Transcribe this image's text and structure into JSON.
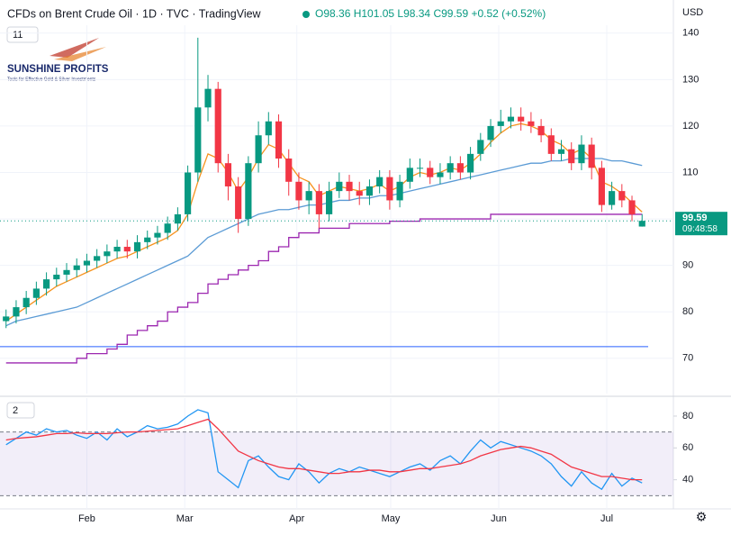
{
  "header": {
    "symbol": "CFDs on Brent Crude Oil · 1D · TVC · TradingView",
    "ohlc": "O98.36 H101.05 L98.34 C99.59 +0.52 (+0.52%)",
    "currency": "USD",
    "indicator_count": "11",
    "timer": "09:48:58"
  },
  "logo": {
    "name": "SUNSHINE PROFITS",
    "tagline": "Tools for Effective Gold & Silver Investments"
  },
  "chart_data": [
    {
      "type": "candlestick",
      "up_color": "#089981",
      "down_color": "#f23645",
      "open": [
        78,
        79,
        81,
        83,
        85,
        87,
        88,
        89,
        90,
        91,
        92,
        93,
        94,
        93,
        95,
        96,
        97,
        99,
        101,
        110,
        124,
        128,
        112,
        107,
        100,
        112,
        118,
        121,
        113,
        108,
        104,
        106,
        101,
        106,
        108,
        106,
        105,
        107,
        109,
        104,
        108,
        111,
        111,
        109,
        110,
        112,
        110,
        114,
        117,
        120,
        121,
        122,
        121,
        120,
        118,
        114,
        115,
        112,
        116,
        111,
        103,
        106,
        104,
        98.36
      ],
      "high": [
        80.5,
        82.5,
        84.5,
        86.5,
        88.5,
        89.5,
        90.5,
        91.5,
        92.5,
        93.5,
        94.5,
        95.5,
        95.5,
        96.5,
        97.5,
        98.5,
        100.5,
        102.5,
        111.5,
        139,
        131,
        129.5,
        114,
        109,
        113.5,
        121,
        123,
        122.5,
        115,
        110,
        108,
        107.5,
        108,
        110,
        109.5,
        108,
        108.5,
        110.5,
        110.5,
        109.5,
        113,
        113,
        112.5,
        112,
        113.5,
        113.5,
        115.5,
        118.5,
        121.5,
        123.5,
        124,
        124,
        123,
        121.5,
        119.5,
        117,
        116.5,
        118,
        117.5,
        112.5,
        108,
        107.5,
        105,
        101.05
      ],
      "low": [
        76.5,
        77.5,
        79.5,
        81.5,
        83.5,
        85.5,
        86.5,
        87.5,
        88.5,
        89.5,
        90.5,
        91.5,
        91.5,
        91.5,
        93.5,
        94.5,
        95.5,
        97.5,
        99.5,
        108,
        121,
        110,
        104,
        97,
        98.5,
        110,
        116,
        111,
        105,
        102,
        101,
        98,
        99.5,
        104.5,
        104,
        103,
        103,
        105.5,
        102,
        102.5,
        106.5,
        109,
        107.5,
        107.5,
        108.5,
        108.5,
        108.5,
        112.5,
        115.5,
        118.5,
        119.5,
        119,
        118.5,
        116.5,
        112.5,
        112.5,
        110.5,
        110.5,
        108.5,
        101.5,
        102,
        102.5,
        99.5,
        98.34
      ],
      "close": [
        79,
        81,
        83,
        85,
        87,
        88,
        89,
        90,
        91,
        92,
        93,
        94,
        93,
        95,
        96,
        97,
        99,
        101,
        110,
        124,
        128,
        112,
        107,
        100,
        112,
        118,
        121,
        113,
        108,
        104,
        106,
        101,
        106,
        108,
        106,
        105,
        107,
        109,
        104,
        108,
        111,
        111,
        109,
        110,
        112,
        110,
        114,
        117,
        120,
        121,
        122,
        121,
        120,
        118,
        114,
        115,
        112,
        116,
        111,
        103,
        106,
        104,
        101,
        99.59
      ],
      "series": [
        {
          "color": "#5b9bd5",
          "values": [
            77,
            78,
            78.5,
            79,
            79.5,
            80,
            80.5,
            81,
            82,
            83,
            84,
            85,
            86,
            87,
            88,
            89,
            90,
            91,
            92,
            94,
            96,
            97,
            98,
            99,
            100,
            101,
            101.5,
            102,
            102,
            102.5,
            103,
            103,
            103.5,
            104,
            104,
            104.5,
            104.5,
            105,
            105,
            105.5,
            106,
            106.5,
            107,
            107.5,
            108,
            108.5,
            109,
            109.5,
            110,
            110.5,
            111,
            111.5,
            112,
            112,
            112.5,
            112.5,
            113,
            113,
            113,
            113,
            112.5,
            112.5,
            112,
            111.5
          ]
        },
        {
          "color": "#f7931e",
          "values": [
            78,
            79.5,
            81,
            82.5,
            84,
            85.5,
            86.5,
            87.5,
            88.5,
            89.5,
            90.5,
            91.5,
            92,
            93,
            94,
            95,
            96,
            97.5,
            101,
            108,
            114,
            113,
            110,
            106,
            109,
            113,
            116,
            115,
            112,
            109,
            108,
            105,
            106,
            107,
            106.5,
            106,
            106.5,
            107.5,
            106,
            107,
            109,
            110,
            109.5,
            110,
            111,
            110.5,
            112,
            114,
            116.5,
            118.5,
            120,
            120.5,
            120,
            119,
            117,
            116,
            114,
            115,
            113,
            108,
            107,
            105.5,
            103.5,
            101.5
          ]
        },
        {
          "color": "#9c27b0",
          "step": true,
          "values": [
            69,
            69,
            69,
            69,
            69,
            69,
            69,
            70,
            71,
            71,
            72,
            73,
            75,
            76,
            77,
            78,
            80,
            81,
            82,
            84,
            86,
            87,
            88,
            89,
            90,
            91,
            93,
            94,
            96,
            97,
            97,
            98,
            98,
            98,
            99,
            99,
            99,
            99,
            99.5,
            99.5,
            99.5,
            100,
            100,
            100,
            100,
            100,
            100,
            100,
            101,
            101,
            101,
            101,
            101,
            101,
            101,
            101,
            101,
            101,
            101,
            101,
            101,
            101,
            101,
            101
          ]
        }
      ],
      "hlines": [
        {
          "value": 72.5,
          "color": "#2962ff"
        }
      ],
      "ylim": [
        62.4,
        141.7
      ],
      "yticks": [
        70,
        80,
        90,
        100,
        110,
        120,
        130,
        140
      ],
      "xlim": [
        -0.6,
        66.1
      ],
      "xticks": [
        {
          "value": 8,
          "label": "Feb"
        },
        {
          "value": 17.7,
          "label": "Mar"
        },
        {
          "value": 28.8,
          "label": "Apr"
        },
        {
          "value": 38.1,
          "label": "May"
        },
        {
          "value": 48.8,
          "label": "Jun"
        },
        {
          "value": 59.5,
          "label": "Jul"
        }
      ]
    },
    {
      "type": "line",
      "indicator_count": "2",
      "band": [
        30,
        70
      ],
      "band_color": "#7e57c2",
      "series": [
        {
          "color": "#2196f3",
          "values": [
            62,
            66,
            70,
            68,
            72,
            70,
            71,
            68,
            66,
            70,
            65,
            72,
            67,
            70,
            74,
            72,
            73,
            75,
            80,
            84,
            82,
            45,
            40,
            35,
            52,
            55,
            48,
            42,
            40,
            50,
            45,
            38,
            44,
            47,
            45,
            48,
            46,
            44,
            42,
            45,
            48,
            50,
            46,
            52,
            55,
            50,
            58,
            65,
            60,
            64,
            62,
            60,
            58,
            55,
            50,
            42,
            36,
            45,
            38,
            34,
            44,
            36,
            41,
            38
          ]
        },
        {
          "color": "#f23645",
          "values": [
            65,
            66,
            66.5,
            67,
            68,
            69,
            69,
            69.5,
            69,
            69,
            69,
            69.5,
            70,
            70,
            70.5,
            71,
            71.5,
            72,
            74,
            76,
            78,
            72,
            65,
            58,
            55,
            52,
            50,
            48,
            47,
            47,
            46,
            45,
            44,
            44,
            45,
            45,
            46,
            46,
            45,
            45,
            46,
            47,
            47,
            48,
            49,
            50,
            52,
            55,
            57,
            59,
            60,
            61,
            60,
            58,
            56,
            52,
            48,
            46,
            44,
            42,
            42,
            41,
            40,
            40
          ]
        }
      ],
      "ylim": [
        21.7,
        91.3
      ],
      "yticks": [
        40,
        60,
        80
      ]
    }
  ]
}
